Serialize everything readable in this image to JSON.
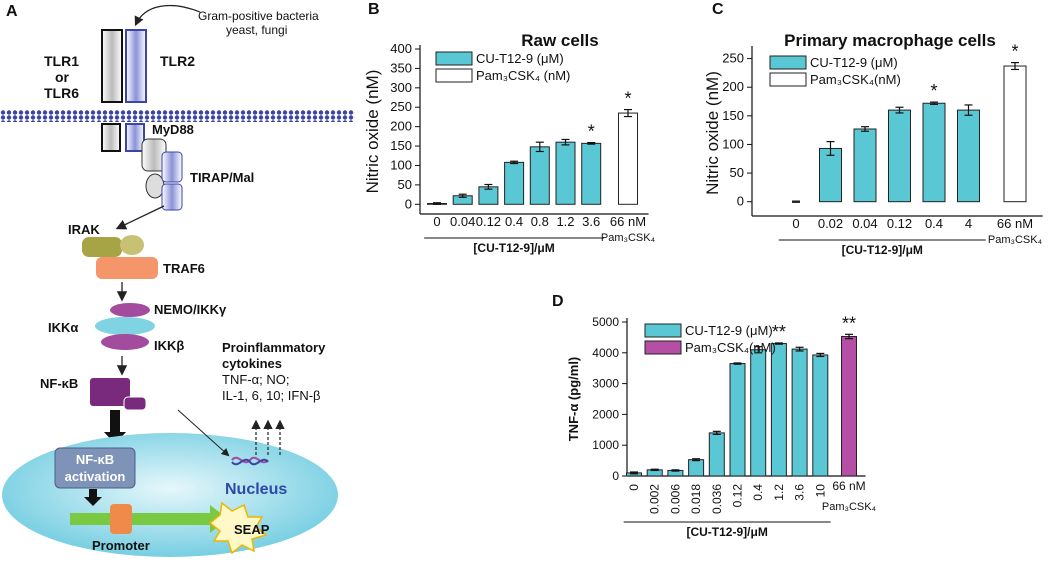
{
  "diagram": {
    "label": "A",
    "source": [
      "Gram-positive bacteria",
      "yeast, fungi"
    ],
    "receptors": {
      "tlr1": [
        "TLR1",
        "or",
        "TLR6"
      ],
      "tlr2": "TLR2"
    },
    "adaptors": [
      "MyD88",
      "TIRAP/Mal"
    ],
    "kinases": [
      "IRAK",
      "TRAF6"
    ],
    "ikk": [
      "NEMO/IKKγ",
      "IKKα",
      "IKKβ"
    ],
    "nfkb": "NF-κB",
    "cytokines": {
      "title": [
        "Proinflammatory",
        "cytokines"
      ],
      "lines": [
        "TNF-α; NO;",
        "IL-1, 6, 10; IFN-β"
      ]
    },
    "nucleus": {
      "activation": [
        "NF-κB",
        "activation"
      ],
      "label": "Nucleus",
      "promoter": "Promoter",
      "reporter": "SEAP"
    }
  },
  "chart_data": [
    {
      "type": "bar",
      "panel_label": "B",
      "title": "Raw cells",
      "ylabel": "Nitric oxide (nM)",
      "xlabel": "[CU-T12-9]/μM",
      "categories": [
        "0",
        "0.04",
        "0.12",
        "0.4",
        "0.8",
        "1.2",
        "3.6",
        "66 nM"
      ],
      "x_sublabels": [
        null,
        null,
        null,
        null,
        null,
        null,
        null,
        "Pam₃CSK₄"
      ],
      "series": [
        {
          "name": "CU-T12-9 (μM)",
          "color": "#5ac8d4",
          "values": [
            2,
            22,
            45,
            108,
            148,
            160,
            157,
            null
          ],
          "errors": [
            2,
            4,
            6,
            3,
            12,
            7,
            2,
            null
          ]
        },
        {
          "name": "Pam₃CSK₄ (nM)",
          "color": "#ffffff",
          "values": [
            null,
            null,
            null,
            null,
            null,
            null,
            null,
            235
          ],
          "errors": [
            null,
            null,
            null,
            null,
            null,
            null,
            null,
            9
          ]
        }
      ],
      "significance": [
        null,
        null,
        null,
        null,
        null,
        null,
        "*",
        "*"
      ],
      "ylim": [
        -25,
        400
      ],
      "yticks": [
        0,
        50,
        100,
        150,
        200,
        250,
        300,
        350,
        400
      ],
      "legend": "upper left"
    },
    {
      "type": "bar",
      "panel_label": "C",
      "title": "Primary macrophage cells",
      "ylabel": "Nitric oxide (nM)",
      "xlabel": "[CU-T12-9]/μM",
      "categories": [
        "0",
        "0.02",
        "0.04",
        "0.12",
        "0.4",
        "4",
        "66 nM"
      ],
      "x_sublabels": [
        null,
        null,
        null,
        null,
        null,
        null,
        "Pam₃CSK₄"
      ],
      "series": [
        {
          "name": "CU-T12-9 (μM)",
          "color": "#5ac8d4",
          "values": [
            0,
            93,
            127,
            160,
            172,
            160,
            null
          ],
          "errors": [
            1,
            12,
            4,
            5,
            2,
            9,
            null
          ]
        },
        {
          "name": "Pam₃CSK₄(nM)",
          "color": "#ffffff",
          "values": [
            null,
            null,
            null,
            null,
            null,
            null,
            237
          ],
          "errors": [
            null,
            null,
            null,
            null,
            null,
            null,
            6
          ]
        }
      ],
      "significance": [
        null,
        null,
        null,
        null,
        "*",
        null,
        "*"
      ],
      "ylim": [
        -25,
        265
      ],
      "yticks": [
        0,
        50,
        100,
        150,
        200,
        250
      ],
      "legend": "upper left"
    },
    {
      "type": "bar",
      "panel_label": "D",
      "ylabel": "TNF-α (pg/ml)",
      "xlabel": "[CU-T12-9]/μM",
      "categories": [
        "0",
        "0.002",
        "0.006",
        "0.018",
        "0.036",
        "0.12",
        "0.4",
        "1.2",
        "3.6",
        "10",
        "66 nM"
      ],
      "x_sublabels": [
        null,
        null,
        null,
        null,
        null,
        null,
        null,
        null,
        null,
        null,
        "Pam₃CSK₄"
      ],
      "series": [
        {
          "name": "CU-T12-9 (μM)",
          "color": "#5ac8d4",
          "values": [
            100,
            200,
            180,
            530,
            1400,
            3650,
            4100,
            4300,
            4120,
            3930,
            null
          ],
          "errors": [
            30,
            20,
            20,
            30,
            50,
            20,
            100,
            20,
            60,
            50,
            null
          ]
        },
        {
          "name": "Pam₃CSK₄(nM)",
          "color": "#b54fa5",
          "values": [
            null,
            null,
            null,
            null,
            null,
            null,
            null,
            null,
            null,
            null,
            4530
          ],
          "errors": [
            null,
            null,
            null,
            null,
            null,
            null,
            null,
            null,
            null,
            null,
            70
          ]
        }
      ],
      "significance": [
        null,
        null,
        null,
        null,
        null,
        null,
        null,
        "**",
        null,
        null,
        "**"
      ],
      "ylim": [
        0,
        5000
      ],
      "yticks": [
        0,
        1000,
        2000,
        3000,
        4000,
        5000
      ],
      "legend": "upper left"
    }
  ]
}
